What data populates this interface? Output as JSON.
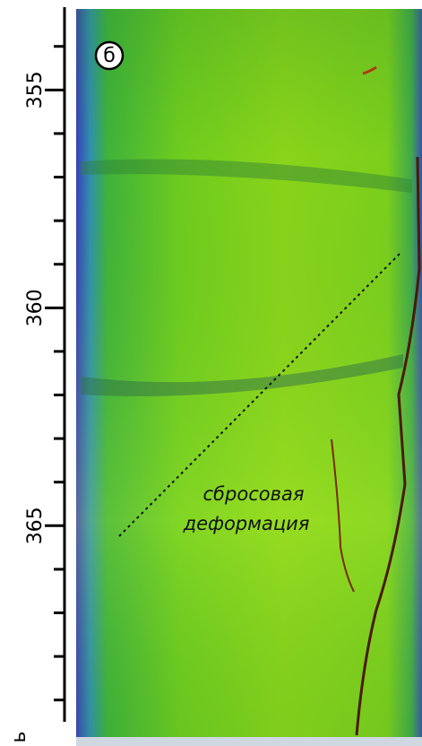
{
  "panel_label": "б",
  "depth_axis": {
    "range": [
      353.1,
      369.5
    ],
    "ticks": [
      355,
      360,
      365
    ],
    "minor_ticks": [
      354,
      356,
      357,
      358,
      359,
      361,
      362,
      363,
      364,
      366,
      367,
      368,
      369
    ],
    "label": "ь"
  },
  "annotation": {
    "lines": [
      "сбросовая",
      "деформация"
    ]
  }
}
